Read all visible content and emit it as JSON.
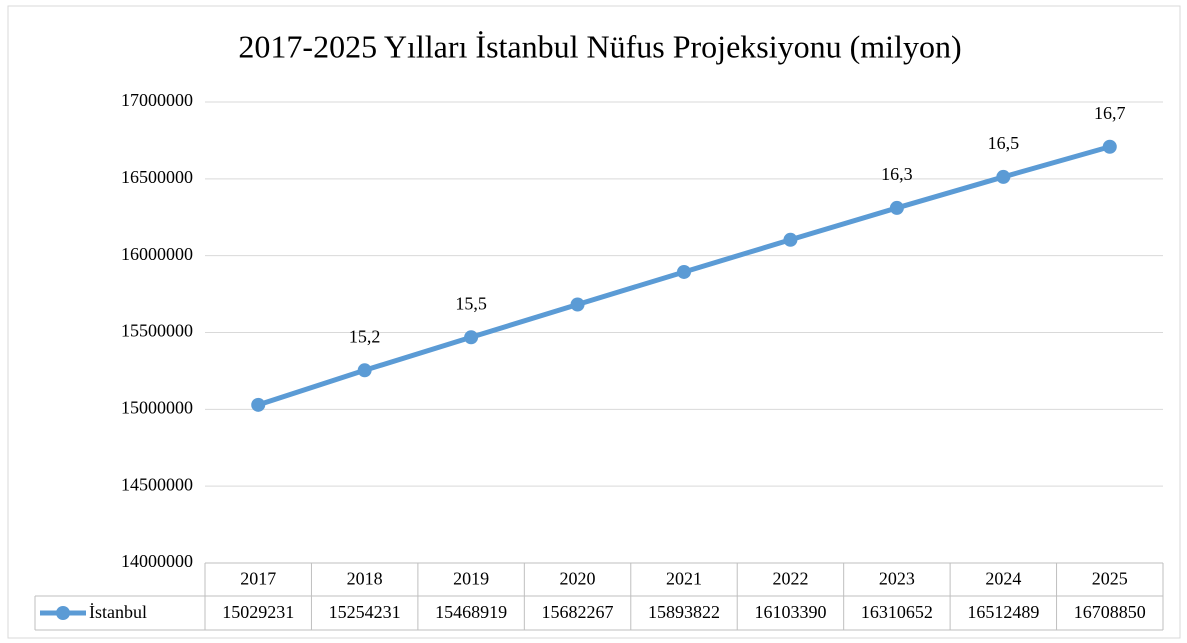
{
  "chart_data": {
    "type": "line",
    "title": "2017-2025  Yılları İstanbul Nüfus Projeksiyonu (milyon)",
    "categories": [
      "2017",
      "2018",
      "2019",
      "2020",
      "2021",
      "2022",
      "2023",
      "2024",
      "2025"
    ],
    "series": [
      {
        "name": "İstanbul",
        "color": "#5b9bd5",
        "values": [
          15029231,
          15254231,
          15468919,
          15682267,
          15893822,
          16103390,
          16310652,
          16512489,
          16708850
        ],
        "value_labels": [
          null,
          "15,2",
          "15,5",
          null,
          null,
          null,
          "16,3",
          "16,5",
          "16,7"
        ]
      }
    ],
    "ylim": [
      14000000,
      17000000
    ],
    "yticks": [
      14000000,
      14500000,
      15000000,
      15500000,
      16000000,
      16500000,
      17000000
    ],
    "grid": true,
    "data_table": true
  }
}
